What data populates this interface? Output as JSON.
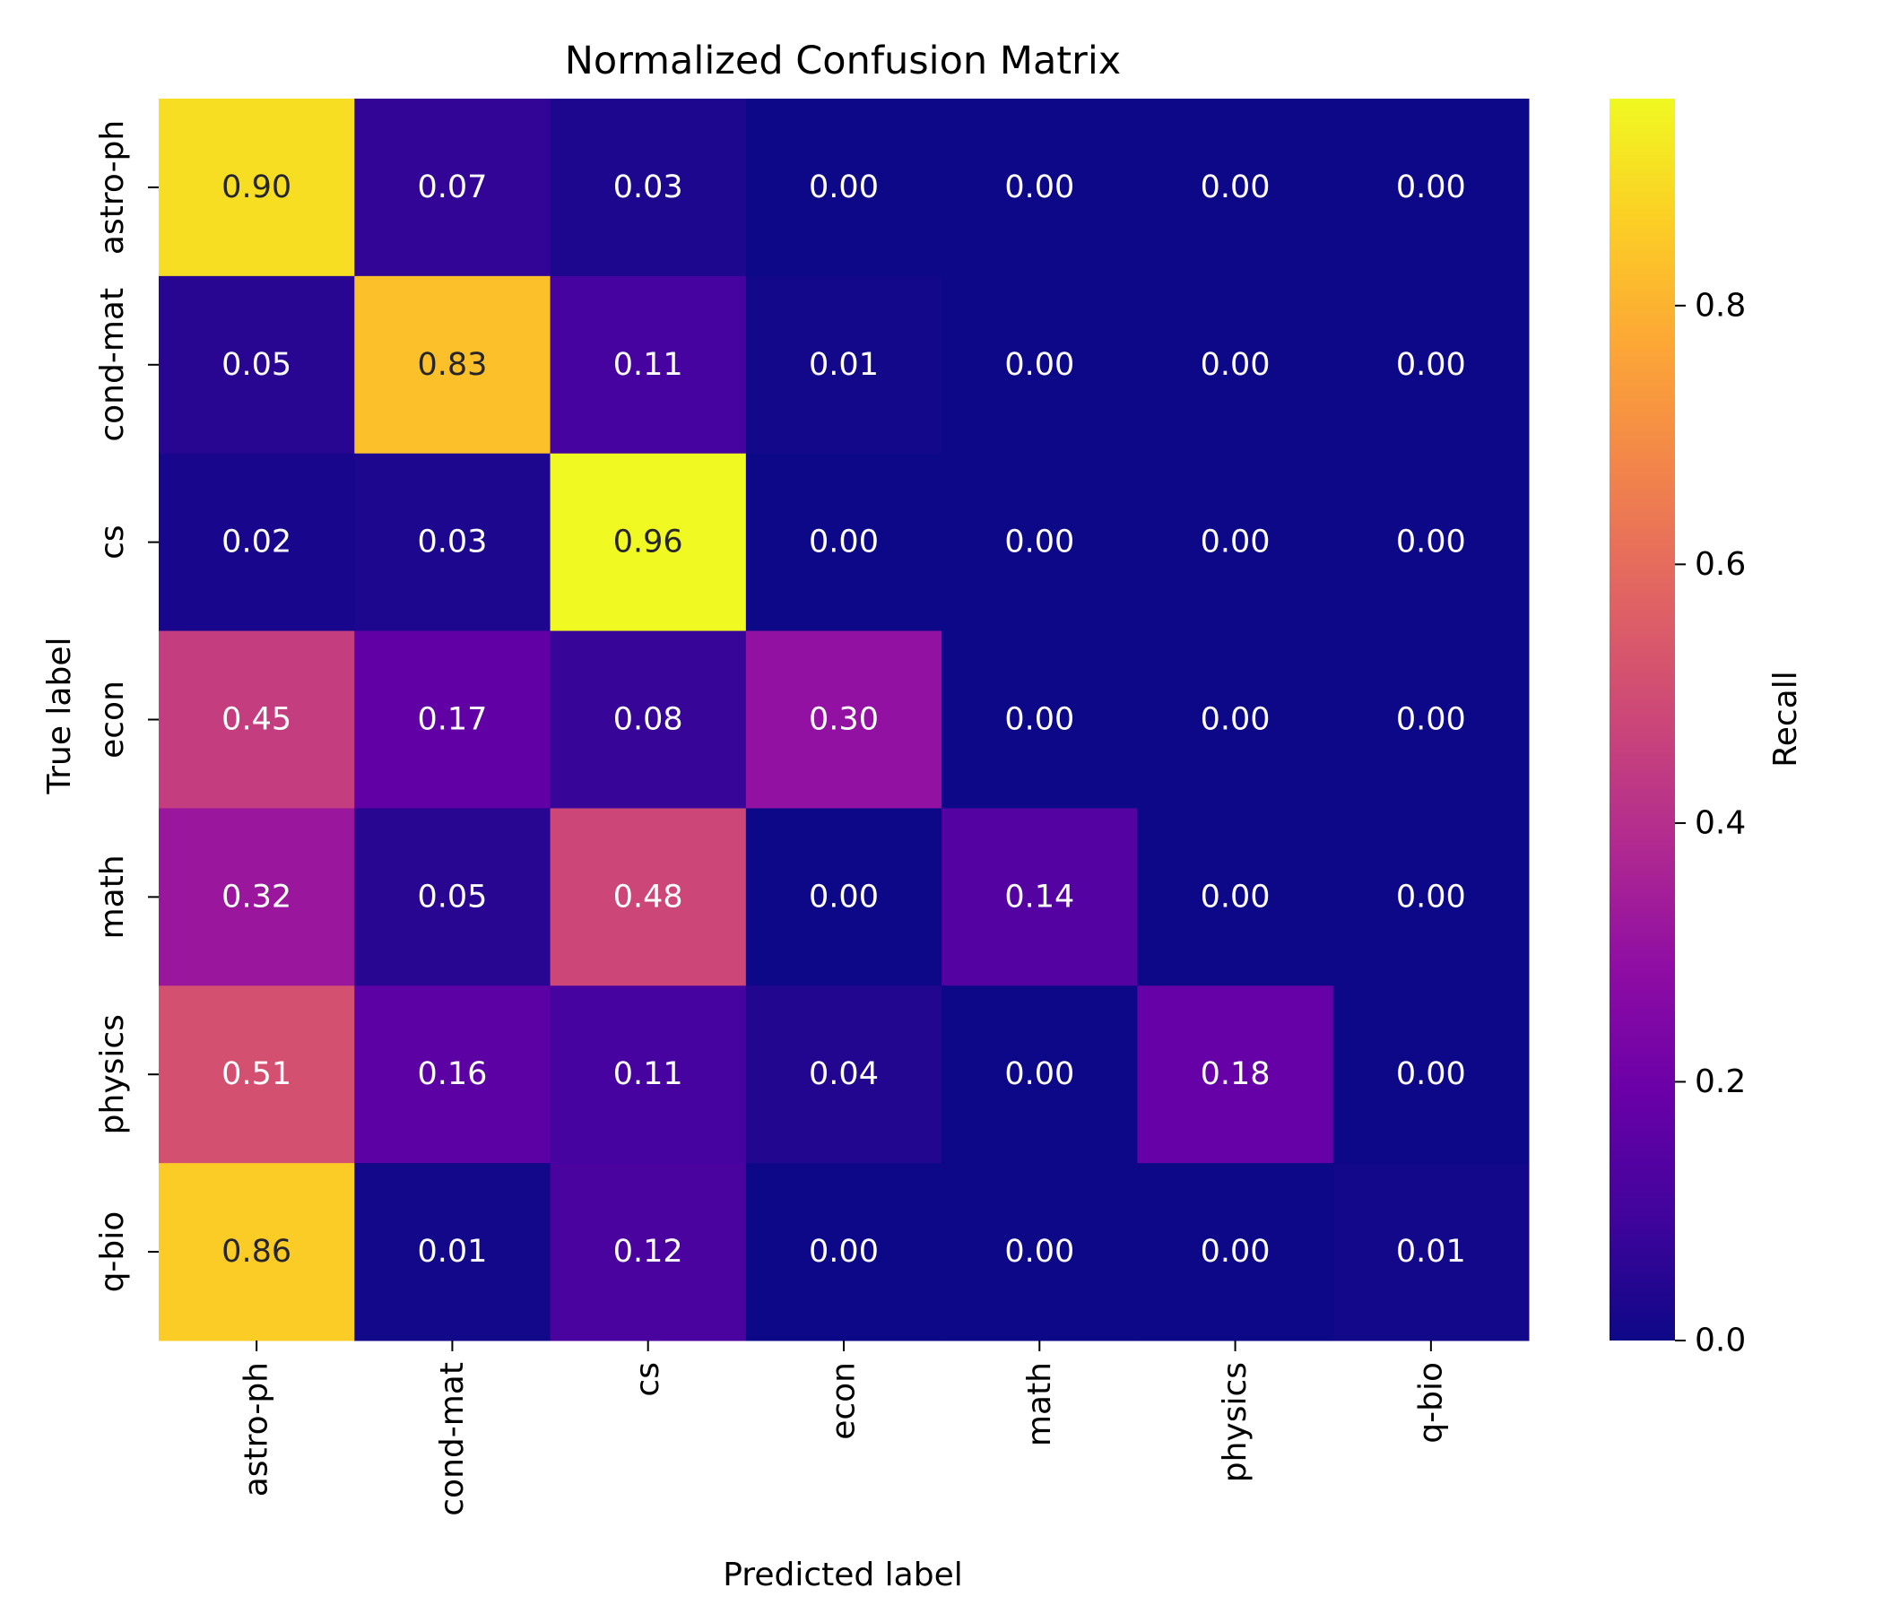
{
  "chart_data": {
    "type": "heatmap",
    "title": "Normalized Confusion Matrix",
    "xlabel": "Predicted label",
    "ylabel": "True label",
    "x_categories": [
      "astro-ph",
      "cond-mat",
      "cs",
      "econ",
      "math",
      "physics",
      "q-bio"
    ],
    "y_categories": [
      "astro-ph",
      "cond-mat",
      "cs",
      "econ",
      "math",
      "physics",
      "q-bio"
    ],
    "values": [
      [
        0.9,
        0.07,
        0.03,
        0.0,
        0.0,
        0.0,
        0.0
      ],
      [
        0.05,
        0.83,
        0.11,
        0.01,
        0.0,
        0.0,
        0.0
      ],
      [
        0.02,
        0.03,
        0.96,
        0.0,
        0.0,
        0.0,
        0.0
      ],
      [
        0.45,
        0.17,
        0.08,
        0.3,
        0.0,
        0.0,
        0.0
      ],
      [
        0.32,
        0.05,
        0.48,
        0.0,
        0.14,
        0.0,
        0.0
      ],
      [
        0.51,
        0.16,
        0.11,
        0.04,
        0.0,
        0.18,
        0.0
      ],
      [
        0.86,
        0.01,
        0.12,
        0.0,
        0.0,
        0.0,
        0.01
      ]
    ],
    "colormap": "plasma",
    "colorbar": {
      "label": "Recall",
      "range": [
        0.0,
        0.96
      ],
      "ticks": [
        0.0,
        0.2,
        0.4,
        0.6,
        0.8
      ],
      "tick_labels": [
        "0.0",
        "0.2",
        "0.4",
        "0.6",
        "0.8"
      ]
    },
    "value_format": "0.00"
  }
}
